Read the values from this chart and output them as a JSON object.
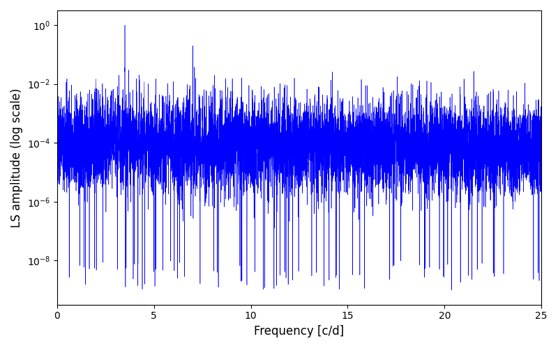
{
  "title": "",
  "xlabel": "Frequency [c/d]",
  "ylabel": "LS amplitude (log scale)",
  "color": "#0000FF",
  "xlim": [
    0,
    25
  ],
  "ylim_log": [
    -9.5,
    0.5
  ],
  "freq_max": 25.0,
  "n_points": 8000,
  "seed": 137,
  "background_color": "#ffffff",
  "linewidth": 0.4,
  "figsize": [
    8.0,
    5.0
  ],
  "dpi": 100,
  "sharp_peaks": [
    {
      "freq": 3.5,
      "amp": 1.0
    },
    {
      "freq": 2.0,
      "amp": 0.015
    },
    {
      "freq": 3.2,
      "amp": 0.02
    },
    {
      "freq": 3.7,
      "amp": 0.03
    },
    {
      "freq": 4.1,
      "amp": 0.015
    },
    {
      "freq": 4.5,
      "amp": 0.012
    },
    {
      "freq": 5.1,
      "amp": 0.015
    },
    {
      "freq": 6.0,
      "amp": 0.012
    },
    {
      "freq": 7.0,
      "amp": 0.2
    },
    {
      "freq": 7.5,
      "amp": 0.004
    },
    {
      "freq": 8.5,
      "amp": 0.0003
    },
    {
      "freq": 9.5,
      "amp": 0.0004
    },
    {
      "freq": 10.5,
      "amp": 0.0004
    },
    {
      "freq": 13.5,
      "amp": 0.008
    },
    {
      "freq": 14.5,
      "amp": 0.0004
    },
    {
      "freq": 17.5,
      "amp": 0.003
    },
    {
      "freq": 21.0,
      "amp": 0.00015
    },
    {
      "freq": 22.5,
      "amp": 3e-08
    }
  ],
  "base_level": 0.0001,
  "log_noise_sigma": 1.8,
  "freq_decay": 0.015,
  "deep_trough_count": 80,
  "deep_trough_min": -9,
  "deep_trough_max": -8,
  "extra_spike_count": 300,
  "extra_spike_log_min": -7,
  "extra_spike_log_max": -3
}
